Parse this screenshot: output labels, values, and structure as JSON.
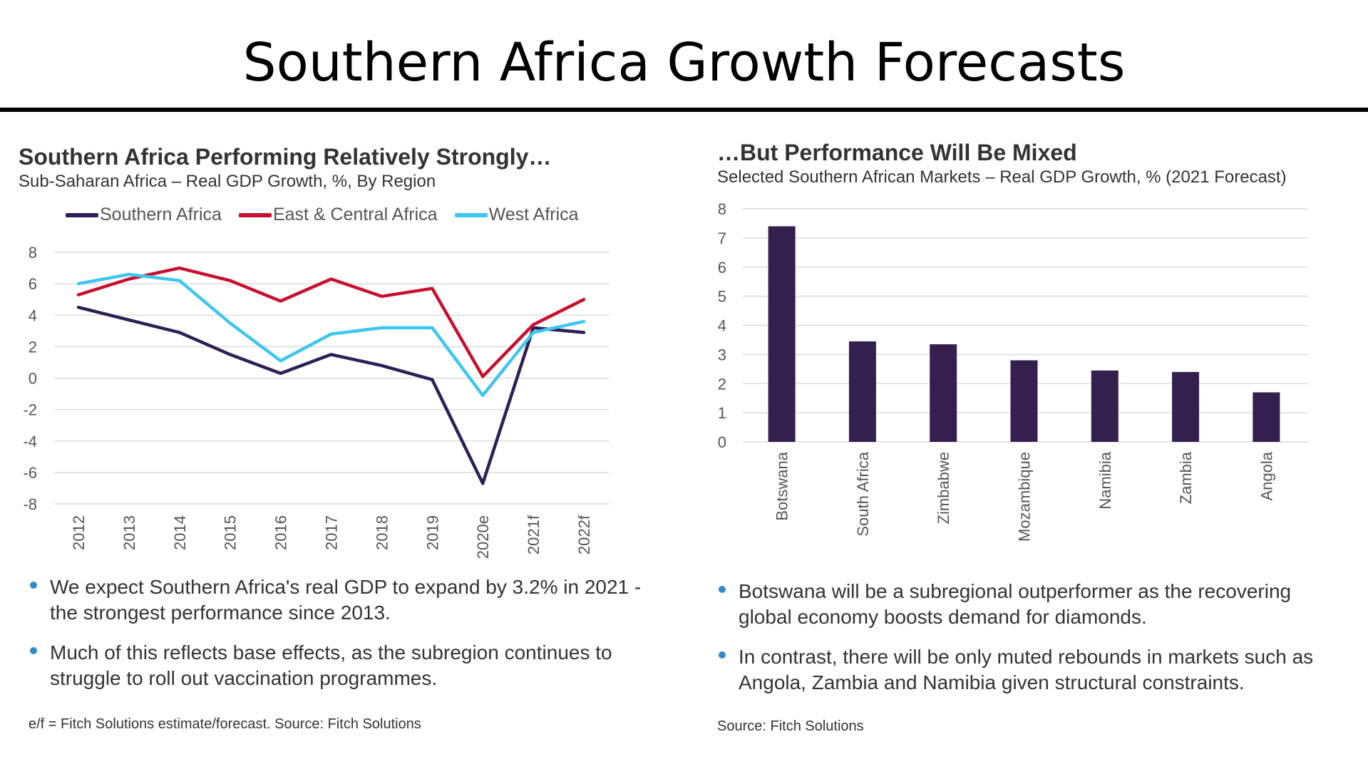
{
  "page": {
    "title": "Southern Africa Growth Forecasts"
  },
  "left_panel": {
    "title": "Southern Africa Performing Relatively Strongly…",
    "subtitle": "Sub-Saharan Africa – Real GDP Growth, %, By Region",
    "bullets": [
      "We expect Southern Africa's real GDP to expand by 3.2% in 2021 - the strongest performance since 2013.",
      "Much of this reflects base effects, as the subregion continues to struggle to roll out vaccination programmes."
    ],
    "source": "e/f = Fitch Solutions estimate/forecast. Source: Fitch Solutions"
  },
  "right_panel": {
    "title": "…But Performance Will Be Mixed",
    "subtitle": "Selected Southern African Markets – Real GDP Growth, % (2021 Forecast)",
    "bullets": [
      "Botswana will be a subregional outperformer as the recovering global economy boosts demand for diamonds.",
      "In contrast, there will be only muted rebounds in markets such as Angola, Zambia and Namibia given structural constraints."
    ],
    "source": "Source: Fitch Solutions"
  },
  "chart_data": [
    {
      "type": "line",
      "title": "Southern Africa Performing Relatively Strongly…",
      "subtitle": "Sub-Saharan Africa – Real GDP Growth, %, By Region",
      "categories": [
        "2012",
        "2013",
        "2014",
        "2015",
        "2016",
        "2017",
        "2018",
        "2019",
        "2020e",
        "2021f",
        "2022f"
      ],
      "yticks": [
        "8",
        "6",
        "4",
        "2",
        "0",
        "-2",
        "-4",
        "-6",
        "-8"
      ],
      "ylim": [
        -8,
        8
      ],
      "grid": true,
      "legend": "top",
      "series": [
        {
          "name": "Southern Africa",
          "color": "#2e1f56",
          "values": [
            4.5,
            3.7,
            2.9,
            1.5,
            0.3,
            1.5,
            0.8,
            -0.1,
            -6.7,
            3.2,
            2.9
          ]
        },
        {
          "name": "East & Central Africa",
          "color": "#c8102e",
          "values": [
            5.3,
            6.3,
            7.0,
            6.2,
            4.9,
            6.3,
            5.2,
            5.7,
            0.1,
            3.4,
            5.0
          ]
        },
        {
          "name": "West Africa",
          "color": "#3ec6ef",
          "values": [
            6.0,
            6.6,
            6.2,
            3.5,
            1.1,
            2.8,
            3.2,
            3.2,
            -1.1,
            2.9,
            3.6
          ]
        }
      ]
    },
    {
      "type": "bar",
      "title": "…But Performance Will Be Mixed",
      "subtitle": "Selected Southern African Markets – Real GDP Growth, % (2021 Forecast)",
      "categories": [
        "Botswana",
        "South Africa",
        "Zimbabwe",
        "Mozambique",
        "Namibia",
        "Zambia",
        "Angola"
      ],
      "values": [
        7.4,
        3.45,
        3.35,
        2.8,
        2.45,
        2.4,
        1.7
      ],
      "yticks": [
        "0",
        "1",
        "2",
        "3",
        "4",
        "5",
        "6",
        "7",
        "8"
      ],
      "ylim": [
        0,
        8
      ],
      "grid": true,
      "color": "#33204f"
    }
  ]
}
